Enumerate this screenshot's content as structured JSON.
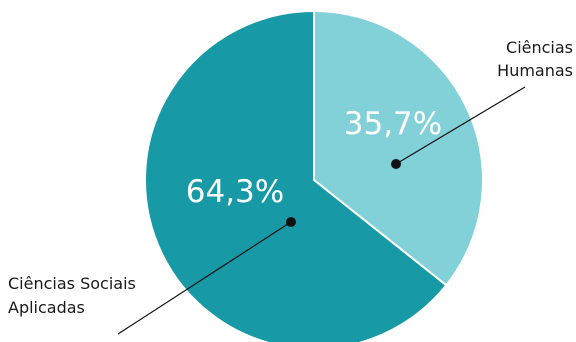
{
  "chart_data": {
    "type": "pie",
    "title": "",
    "slices": [
      {
        "name": "Ciências Humanas",
        "label_lines": [
          "Ciências",
          "Humanas"
        ],
        "value": 35.7,
        "value_label": "35,7%",
        "color": "#82d0d8"
      },
      {
        "name": "Ciências Sociais Aplicadas",
        "label_lines": [
          "Ciências Sociais",
          "Aplicadas"
        ],
        "value": 64.3,
        "value_label": "64,3%",
        "color": "#1899a6"
      }
    ],
    "start_angle": "12 o'clock",
    "direction": "clockwise",
    "separator_color": "#ffffff"
  }
}
